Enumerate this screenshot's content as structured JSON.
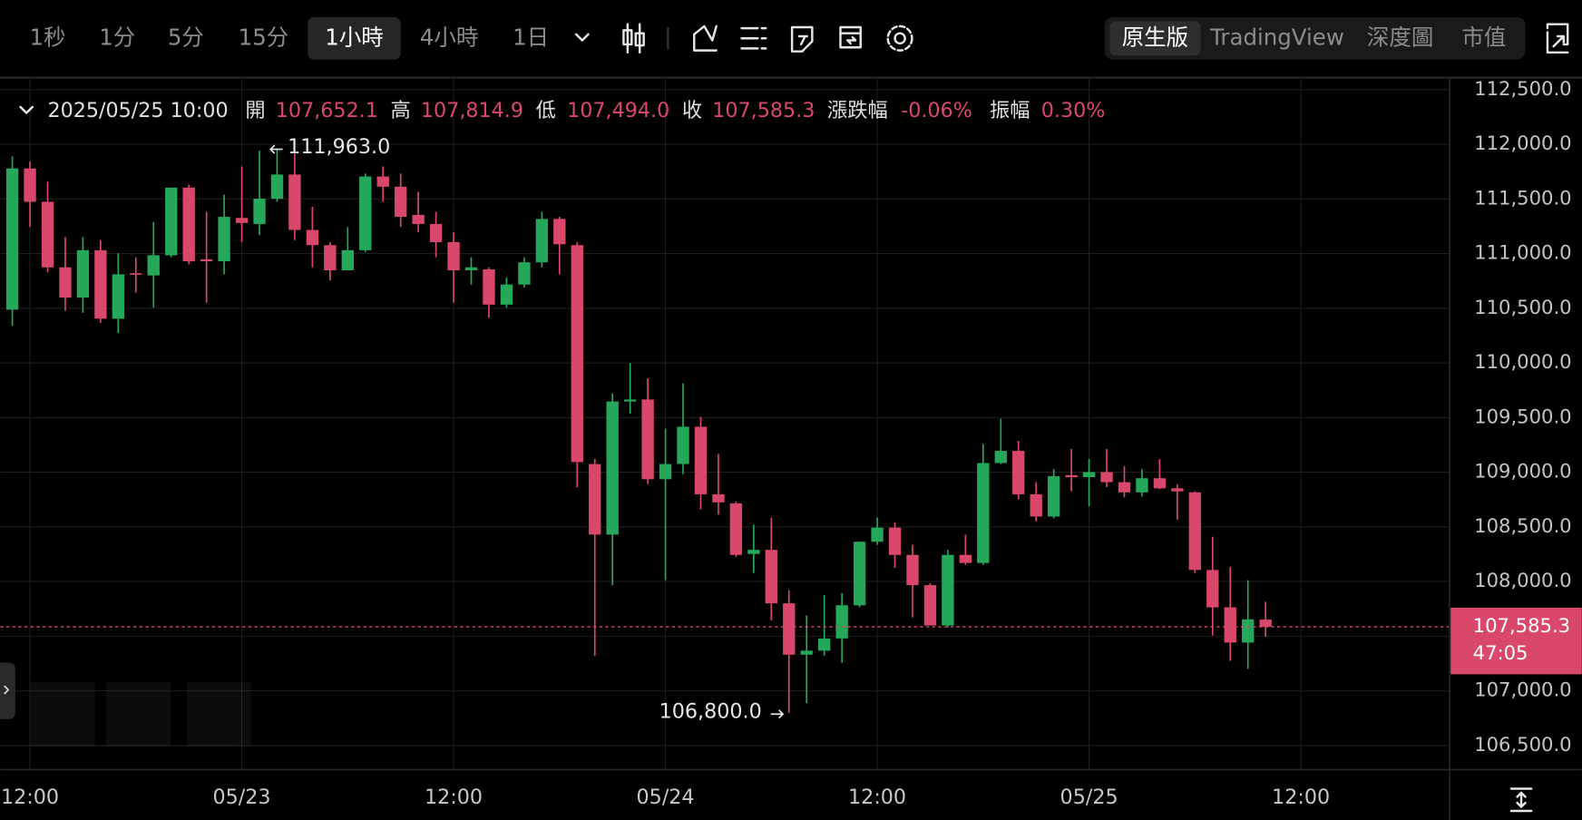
{
  "toolbar": {
    "timeframes": [
      "1秒",
      "1分",
      "5分",
      "15分",
      "1小時",
      "4小時",
      "1日"
    ],
    "active_timeframe": 4,
    "tabs": [
      "原生版",
      "TradingView",
      "深度圖",
      "市值"
    ],
    "active_tab": 0
  },
  "info": {
    "datetime": "2025/05/25 10:00",
    "fields": [
      {
        "label": "開",
        "value": "107,652.1"
      },
      {
        "label": "高",
        "value": "107,814.9"
      },
      {
        "label": "低",
        "value": "107,494.0"
      },
      {
        "label": "收",
        "value": "107,585.3"
      },
      {
        "label": "漲跌幅",
        "value": "-0.06%"
      },
      {
        "label": "振幅",
        "value": "0.30%"
      }
    ]
  },
  "chart_data": {
    "type": "candlestick",
    "categories": [
      null,
      "12:00",
      null,
      null,
      null,
      null,
      null,
      null,
      null,
      null,
      null,
      null,
      null,
      "05/23",
      null,
      null,
      null,
      null,
      null,
      null,
      null,
      null,
      null,
      null,
      null,
      "12:00",
      null,
      null,
      null,
      null,
      null,
      null,
      null,
      null,
      null,
      null,
      null,
      "05/24",
      null,
      null,
      null,
      null,
      null,
      null,
      null,
      null,
      null,
      null,
      null,
      "12:00",
      null,
      null,
      null,
      null,
      null,
      null,
      null,
      null,
      null,
      null,
      null,
      "05/25",
      null,
      null,
      null,
      null,
      null,
      null,
      null,
      null,
      null,
      null,
      null,
      "12:00"
    ],
    "open": [
      110487,
      111779,
      111474,
      110874,
      110597,
      111031,
      110404,
      110820,
      110800,
      110985,
      111603,
      110948,
      110930,
      111326,
      111271,
      111502,
      111723,
      111216,
      111077,
      110847,
      111031,
      111705,
      111612,
      111354,
      111271,
      111105,
      110847,
      110856,
      110533,
      110717,
      110920,
      111317,
      111077,
      109075,
      108429,
      109647,
      109665,
      108936,
      109075,
      109416,
      108798,
      108715,
      108253,
      108290,
      107801,
      107331,
      107368,
      107479,
      107783,
      108364,
      108493,
      108244,
      107967,
      107598,
      108244,
      108170,
      109084,
      109195,
      108798,
      108595,
      108973,
      108955,
      109001,
      108909,
      108816,
      108945,
      108853,
      108816,
      108106,
      107764,
      107442,
      107652.1,
      null,
      null
    ],
    "high": [
      111889,
      111843,
      111658,
      111151,
      111151,
      111123,
      111003,
      110966,
      111289,
      111603,
      111631,
      111382,
      111539,
      111797,
      111940,
      111963,
      111917,
      111428,
      111105,
      111243,
      111732,
      111797,
      111732,
      111566,
      111382,
      111197,
      110966,
      110874,
      110782,
      110966,
      111382,
      111336,
      111105,
      109121,
      109721,
      109997,
      109859,
      109398,
      109813,
      109508,
      109167,
      108733,
      108521,
      108585,
      107921,
      107691,
      107875,
      107894,
      108364,
      108586,
      108540,
      108336,
      107986,
      108290,
      108429,
      109259,
      109490,
      109287,
      108909,
      109029,
      109213,
      109121,
      109213,
      109056,
      109029,
      109121,
      108890,
      108825,
      108410,
      108133,
      108013,
      107814.9,
      null,
      null
    ],
    "low": [
      110339,
      111243,
      110828,
      110477,
      110459,
      110367,
      110274,
      110644,
      110505,
      110966,
      110902,
      110551,
      110810,
      111105,
      111169,
      111474,
      111123,
      110874,
      110754,
      110847,
      111013,
      111474,
      111243,
      111197,
      110966,
      110551,
      110717,
      110413,
      110505,
      110690,
      110874,
      110810,
      108862,
      107321,
      107967,
      109536,
      108890,
      108013,
      108982,
      108660,
      108613,
      108226,
      108078,
      107644,
      106800,
      106888,
      107322,
      107257,
      107765,
      108336,
      108124,
      107672,
      107598,
      107580,
      108152,
      108152,
      109075,
      108752,
      108549,
      108577,
      108826,
      108687,
      108863,
      108770,
      108779,
      108844,
      108567,
      108078,
      107506,
      107275,
      107201,
      107494.0,
      null,
      null
    ],
    "close": [
      111779,
      111474,
      110874,
      110597,
      111031,
      110404,
      110810,
      110810,
      110985,
      111603,
      110930,
      110930,
      111336,
      111280,
      111502,
      111723,
      111216,
      111077,
      110847,
      111031,
      111705,
      111612,
      111336,
      111271,
      111105,
      110847,
      110874,
      110533,
      110717,
      110920,
      111317,
      111086,
      109093,
      108429,
      109647,
      109665,
      108936,
      109075,
      109416,
      108798,
      108724,
      108244,
      108290,
      107801,
      107331,
      107368,
      107479,
      107783,
      108364,
      108493,
      108244,
      107967,
      107598,
      108244,
      108170,
      109084,
      109195,
      108798,
      108595,
      108964,
      108955,
      109001,
      108909,
      108816,
      108945,
      108853,
      108825,
      108106,
      107764,
      107442,
      107654,
      107585.3,
      null,
      null
    ],
    "up_color": "#25a85a",
    "down_color": "#d9486b",
    "ylim": [
      106280,
      112600
    ],
    "yticks": [
      {
        "value": 106500,
        "label": "106,500.0"
      },
      {
        "value": 107000,
        "label": "107,000.0"
      },
      {
        "value": 107500,
        "label": "107,500.0"
      },
      {
        "value": 108000,
        "label": "108,000.0"
      },
      {
        "value": 108500,
        "label": "108,500.0"
      },
      {
        "value": 109000,
        "label": "109,000.0"
      },
      {
        "value": 109500,
        "label": "109,500.0"
      },
      {
        "value": 110000,
        "label": "110,000.0"
      },
      {
        "value": 110500,
        "label": "110,500.0"
      },
      {
        "value": 111000,
        "label": "111,000.0"
      },
      {
        "value": 111500,
        "label": "111,500.0"
      },
      {
        "value": 112000,
        "label": "112,000.0"
      },
      {
        "value": 112500,
        "label": "112,500.0"
      }
    ],
    "grid": true,
    "annotations": {
      "max": "111,963.0",
      "min": "106,800.0"
    },
    "last_price": {
      "label": "107,585.3",
      "countdown": "47:05"
    }
  }
}
